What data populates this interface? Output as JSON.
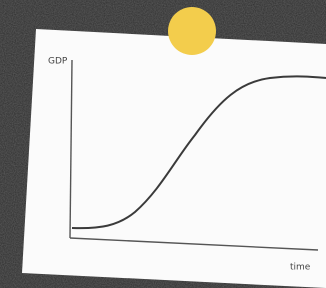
{
  "labels": {
    "y_axis": "GDP",
    "x_axis": "time"
  }
}
